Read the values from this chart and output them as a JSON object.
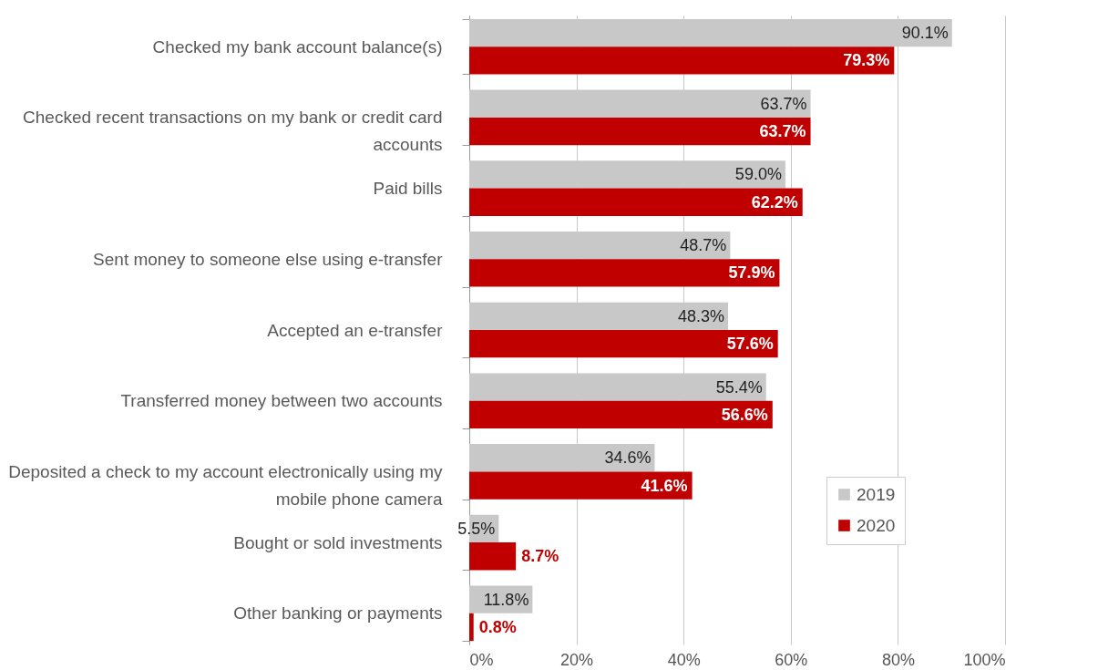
{
  "chart_data": {
    "type": "bar",
    "orientation": "horizontal",
    "categories": [
      "Checked my bank account balance(s)",
      "Checked recent transactions on my bank or credit card accounts",
      "Paid bills",
      "Sent money to someone else using e-transfer",
      "Accepted an e-transfer",
      "Transferred money between two accounts",
      "Deposited a check to my account electronically using my mobile phone camera",
      "Bought or sold investments",
      "Other banking or payments"
    ],
    "series": [
      {
        "name": "2019",
        "color": "#c8c8c8",
        "values": [
          90.1,
          63.7,
          59.0,
          48.7,
          48.3,
          55.4,
          34.6,
          5.5,
          11.8
        ],
        "value_labels": [
          "90.1%",
          "63.7%",
          "59.0%",
          "48.7%",
          "48.3%",
          "55.4%",
          "34.6%",
          "5.5%",
          "11.8%"
        ]
      },
      {
        "name": "2020",
        "color": "#c00000",
        "values": [
          79.3,
          63.7,
          62.2,
          57.9,
          57.6,
          56.6,
          41.6,
          8.7,
          0.8
        ],
        "value_labels": [
          "79.3%",
          "63.7%",
          "62.2%",
          "57.9%",
          "57.6%",
          "56.6%",
          "41.6%",
          "8.7%",
          "0.8%"
        ]
      }
    ],
    "xlim": [
      0,
      100
    ],
    "xticks": [
      {
        "value": 0,
        "label": "0%"
      },
      {
        "value": 20,
        "label": "20%"
      },
      {
        "value": 40,
        "label": "40%"
      },
      {
        "value": 60,
        "label": "60%"
      },
      {
        "value": 80,
        "label": "80%"
      },
      {
        "value": 100,
        "label": "100%"
      }
    ],
    "grid": "x",
    "legend": "bottom right"
  }
}
